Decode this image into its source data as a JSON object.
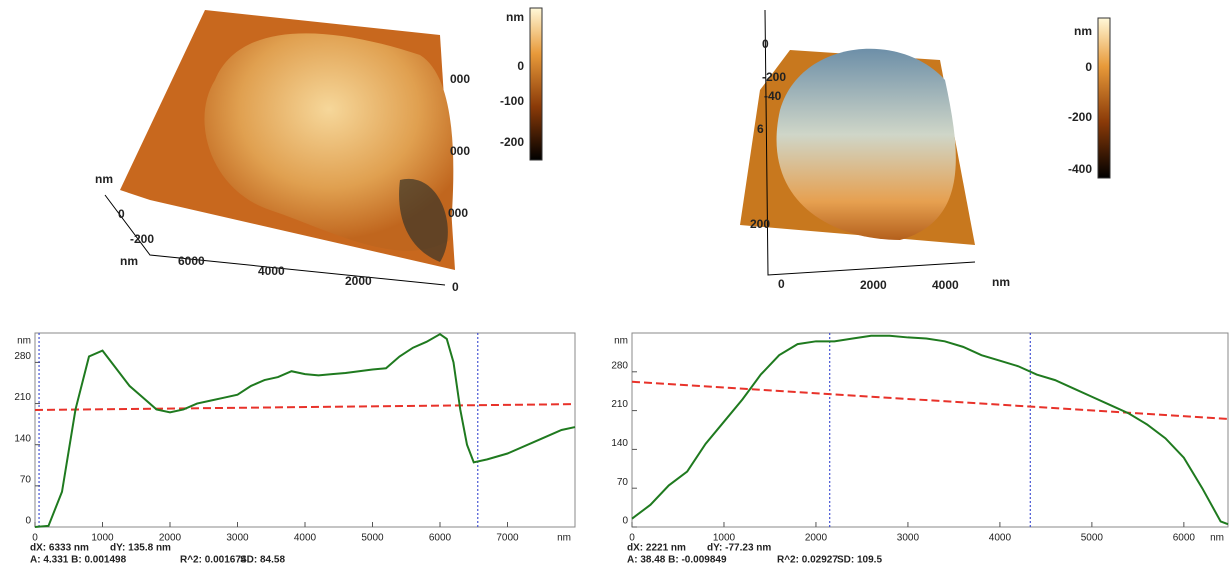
{
  "images": [
    {
      "axis_texts": [
        "nm",
        "0",
        "-200",
        "nm",
        "6000",
        "4000",
        "2000",
        "0",
        "000",
        "000",
        "000"
      ],
      "colorbar": [
        "nm",
        "0",
        "-100",
        "-200"
      ]
    },
    {
      "axis_texts": [
        "0",
        "-200",
        "-40",
        "6",
        "200",
        "0",
        "2000",
        "4000",
        "nm"
      ],
      "colorbar": [
        "nm",
        "0",
        "-200",
        "-400"
      ]
    }
  ],
  "chart_data": [
    {
      "type": "line",
      "color": "#1f7a1f",
      "x": [
        0,
        200,
        400,
        600,
        800,
        1000,
        1200,
        1400,
        1600,
        1800,
        2000,
        2200,
        2400,
        2600,
        2800,
        3000,
        3200,
        3400,
        3600,
        3800,
        4000,
        4200,
        4400,
        4600,
        4800,
        5000,
        5200,
        5400,
        5600,
        5800,
        6000,
        6100,
        6200,
        6300,
        6400,
        6500,
        6700,
        7000,
        7500,
        7800,
        8000
      ],
      "values": [
        0,
        2,
        60,
        200,
        290,
        300,
        270,
        240,
        220,
        200,
        195,
        200,
        210,
        215,
        220,
        225,
        240,
        250,
        255,
        265,
        260,
        258,
        260,
        262,
        265,
        268,
        270,
        290,
        305,
        315,
        328,
        320,
        280,
        200,
        140,
        110,
        115,
        125,
        150,
        165,
        170
      ],
      "fit_x": [
        0,
        8000
      ],
      "fit_values": [
        199,
        209
      ],
      "fit_color": "#e8322a",
      "cursors": [
        60,
        6560
      ],
      "xlim": [
        0,
        8000
      ],
      "ylim": [
        0,
        330
      ],
      "xticks": [
        0,
        1000,
        2000,
        3000,
        4000,
        5000,
        6000,
        7000
      ],
      "yticks": [
        0,
        70,
        140,
        210,
        280
      ],
      "x_unit": "nm",
      "y_unit": "nm",
      "footer": [
        "dX: 6333 nm",
        "dY: 135.8 nm",
        "A: 4.331 B: 0.001498",
        "R^2: 0.001674",
        "SD: 84.58"
      ]
    },
    {
      "type": "line",
      "color": "#1f7a1f",
      "x": [
        0,
        200,
        400,
        600,
        800,
        1000,
        1200,
        1400,
        1600,
        1800,
        2000,
        2200,
        2400,
        2600,
        2800,
        3000,
        3200,
        3400,
        3600,
        3800,
        4000,
        4200,
        4400,
        4600,
        4800,
        5000,
        5200,
        5400,
        5600,
        5800,
        6000,
        6200,
        6400,
        6480
      ],
      "values": [
        15,
        40,
        75,
        100,
        150,
        190,
        230,
        275,
        310,
        330,
        335,
        335,
        340,
        345,
        345,
        342,
        340,
        335,
        325,
        310,
        300,
        290,
        275,
        265,
        250,
        235,
        220,
        205,
        185,
        160,
        125,
        70,
        10,
        5
      ],
      "fit_x": [
        0,
        6480
      ],
      "fit_values": [
        262,
        195
      ],
      "fit_color": "#e8322a",
      "cursors": [
        2150,
        4330
      ],
      "xlim": [
        0,
        6480
      ],
      "ylim": [
        0,
        350
      ],
      "xticks": [
        0,
        1000,
        2000,
        3000,
        4000,
        5000,
        6000
      ],
      "yticks": [
        0,
        70,
        140,
        210,
        280
      ],
      "x_unit": "nm",
      "y_unit": "nm",
      "footer": [
        "dX: 2221 nm",
        "dY: -77.23 nm",
        "A: 38.48 B: -0.009849",
        "R^2: 0.02927",
        "SD: 109.5"
      ]
    }
  ]
}
